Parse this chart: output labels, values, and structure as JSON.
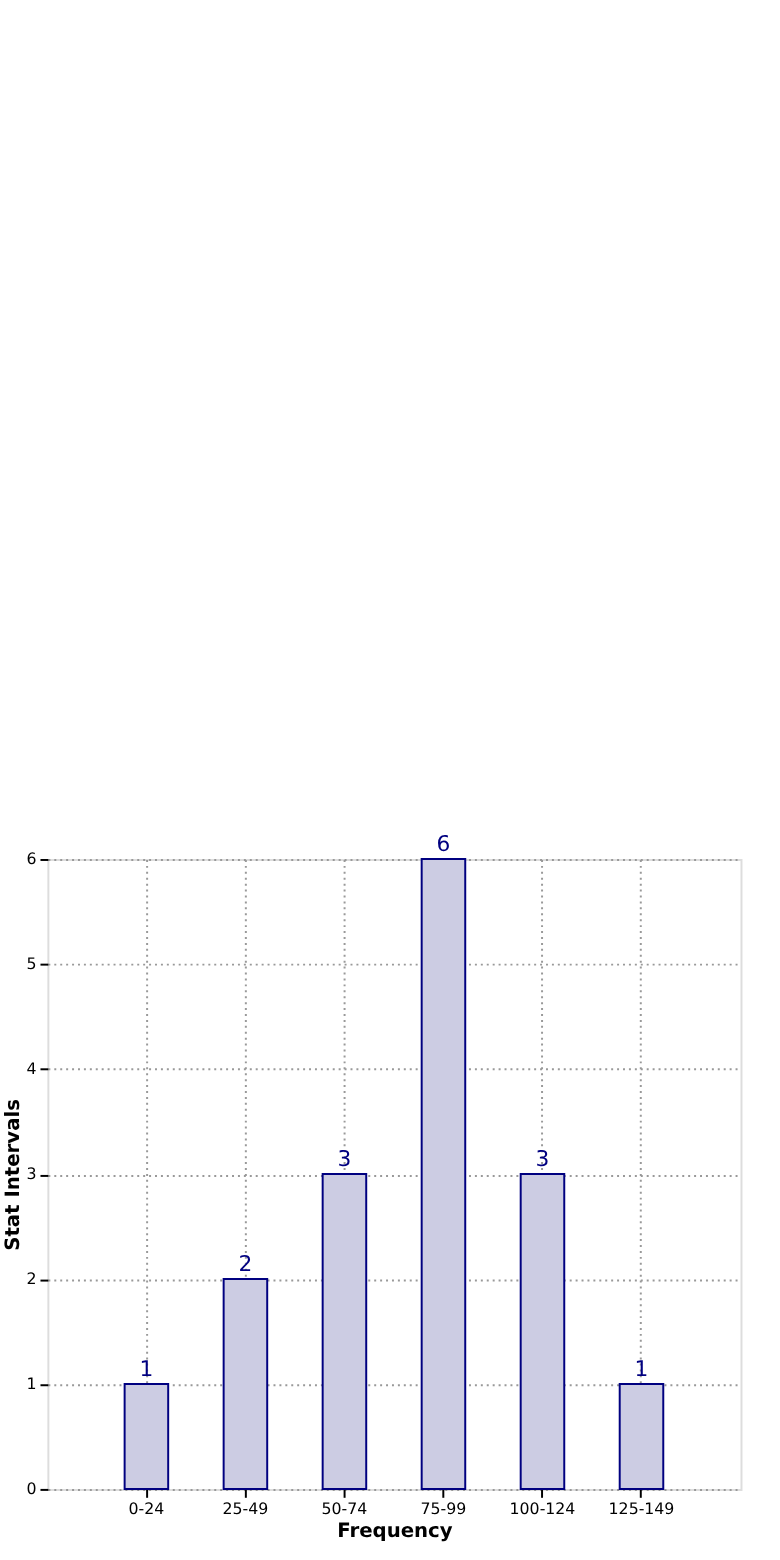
{
  "chart_data": {
    "type": "bar",
    "xlabel": "Frequency",
    "ylabel": "Stat Intervals",
    "categories": [
      "0-24",
      "25-49",
      "50-74",
      "75-99",
      "100-124",
      "125-149"
    ],
    "values": [
      1,
      2,
      3,
      6,
      3,
      1
    ],
    "color": "#ccccE3",
    "ylim": [
      0,
      6
    ],
    "yticks": [
      0,
      1,
      2,
      3,
      4,
      5,
      6
    ],
    "grid": true,
    "data_labels": true
  }
}
